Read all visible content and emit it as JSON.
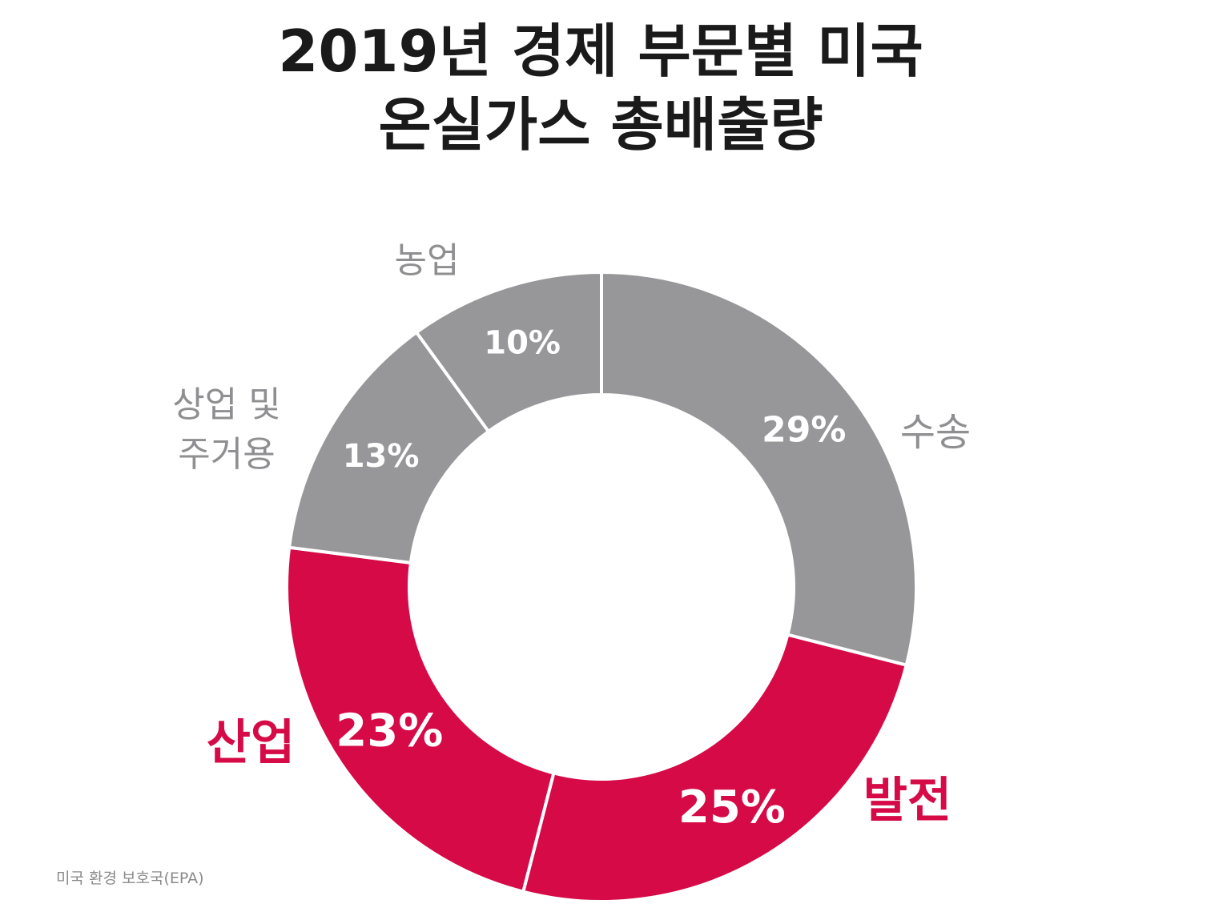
{
  "chart_data": {
    "type": "pie",
    "style": "donut",
    "title_lines": [
      "2019년 경제 부문별 미국",
      "온실가스 총배출량"
    ],
    "slices": [
      {
        "name": "수송",
        "value": 29,
        "label": "29%",
        "category_lines": [
          "수송"
        ],
        "color": "#97979a",
        "highlight": false
      },
      {
        "name": "발전",
        "value": 25,
        "label": "25%",
        "category_lines": [
          "발전"
        ],
        "color": "#d50a47",
        "highlight": true
      },
      {
        "name": "산업",
        "value": 23,
        "label": "23%",
        "category_lines": [
          "산업"
        ],
        "color": "#d50a47",
        "highlight": true
      },
      {
        "name": "상업 및 주거용",
        "value": 13,
        "label": "13%",
        "category_lines": [
          "상업 및",
          "주거용"
        ],
        "color": "#97979a",
        "highlight": false
      },
      {
        "name": "농업",
        "value": 10,
        "label": "10%",
        "category_lines": [
          "농업"
        ],
        "color": "#97979a",
        "highlight": false
      }
    ],
    "start": "12 o'clock",
    "direction": "clockwise",
    "source": "미국 환경 보호국(EPA)"
  },
  "colors": {
    "gray": "#97979a",
    "red": "#d50a47",
    "label_gray": "#8f8f92",
    "title": "#1a1a1a"
  }
}
